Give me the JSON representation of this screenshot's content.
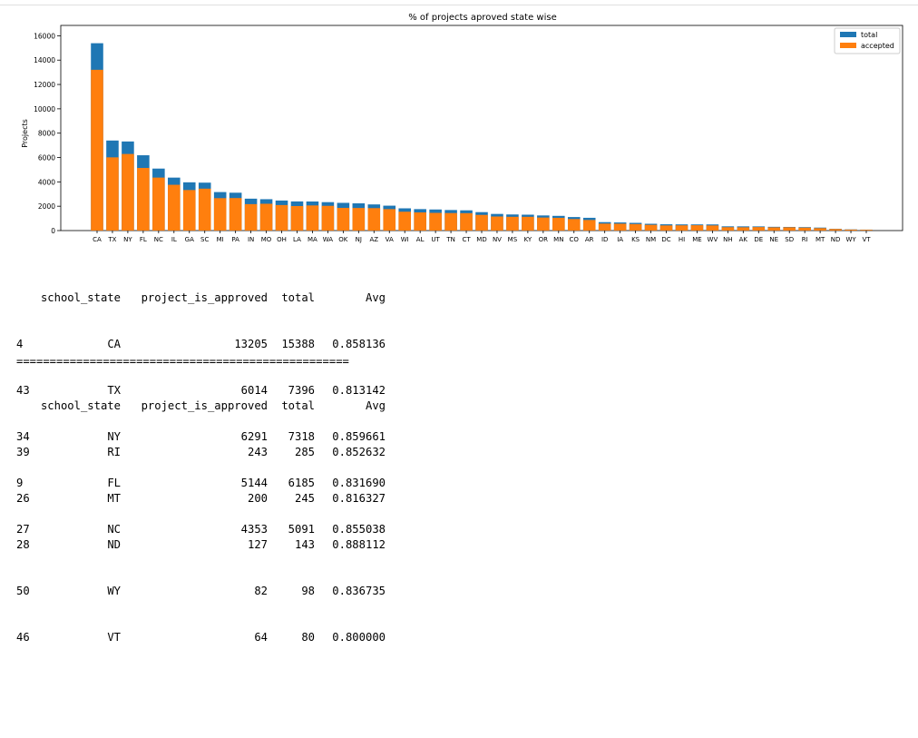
{
  "chart_data": {
    "type": "bar",
    "title": "% of projects aproved state wise",
    "ylabel": "Projects",
    "xlabel": "",
    "ylim": [
      0,
      16000
    ],
    "yticks": [
      0,
      2000,
      4000,
      6000,
      8000,
      10000,
      12000,
      14000,
      16000
    ],
    "grid": false,
    "legend_placement": "top-right",
    "stacked_overlay": true,
    "categories": [
      "CA",
      "TX",
      "NY",
      "FL",
      "NC",
      "IL",
      "GA",
      "SC",
      "MI",
      "PA",
      "IN",
      "MO",
      "OH",
      "LA",
      "MA",
      "WA",
      "OK",
      "NJ",
      "AZ",
      "VA",
      "WI",
      "AL",
      "UT",
      "TN",
      "CT",
      "MD",
      "NV",
      "MS",
      "KY",
      "OR",
      "MN",
      "CO",
      "AR",
      "ID",
      "IA",
      "KS",
      "NM",
      "DC",
      "HI",
      "ME",
      "WV",
      "NH",
      "AK",
      "DE",
      "NE",
      "SD",
      "RI",
      "MT",
      "ND",
      "WY",
      "VT"
    ],
    "series": [
      {
        "name": "total",
        "color": "#1f77b4",
        "values": [
          15388,
          7396,
          7318,
          6185,
          5091,
          4350,
          3963,
          3936,
          3161,
          3109,
          2620,
          2576,
          2467,
          2394,
          2389,
          2334,
          2276,
          2237,
          2147,
          2045,
          1827,
          1762,
          1731,
          1688,
          1663,
          1514,
          1367,
          1323,
          1304,
          1242,
          1208,
          1111,
          1049,
          693,
          666,
          634,
          557,
          516,
          507,
          505,
          503,
          348,
          345,
          343,
          309,
          300,
          285,
          245,
          143,
          98,
          80
        ]
      },
      {
        "name": "accepted",
        "color": "#ff7f0e",
        "values": [
          13205,
          6014,
          6291,
          5144,
          4353,
          3761,
          3329,
          3442,
          2662,
          2670,
          2171,
          2201,
          2095,
          2014,
          2064,
          2031,
          1862,
          1854,
          1843,
          1762,
          1548,
          1492,
          1453,
          1438,
          1428,
          1285,
          1155,
          1131,
          1130,
          1070,
          1046,
          947,
          868,
          573,
          566,
          535,
          472,
          422,
          430,
          439,
          421,
          277,
          271,
          286,
          265,
          270,
          243,
          200,
          127,
          82,
          64
        ]
      }
    ]
  },
  "table_top": {
    "headers": {
      "state": "school_state",
      "approved": "project_is_approved",
      "total": "total",
      "avg": "Avg"
    },
    "rows": [
      {
        "idx": "4",
        "state": "CA",
        "approved": "13205",
        "total": "15388",
        "avg": "0.858136"
      },
      {
        "idx": "43",
        "state": "TX",
        "approved": "6014",
        "total": "7396",
        "avg": "0.813142"
      },
      {
        "idx": "34",
        "state": "NY",
        "approved": "6291",
        "total": "7318",
        "avg": "0.859661"
      },
      {
        "idx": "9",
        "state": "FL",
        "approved": "5144",
        "total": "6185",
        "avg": "0.831690"
      },
      {
        "idx": "27",
        "state": "NC",
        "approved": "4353",
        "total": "5091",
        "avg": "0.855038"
      }
    ]
  },
  "separator": "==================================================",
  "table_bottom": {
    "headers": {
      "state": "school_state",
      "approved": "project_is_approved",
      "total": "total",
      "avg": "Avg"
    },
    "rows": [
      {
        "idx": "39",
        "state": "RI",
        "approved": "243",
        "total": "285",
        "avg": "0.852632"
      },
      {
        "idx": "26",
        "state": "MT",
        "approved": "200",
        "total": "245",
        "avg": "0.816327"
      },
      {
        "idx": "28",
        "state": "ND",
        "approved": "127",
        "total": "143",
        "avg": "0.888112"
      },
      {
        "idx": "50",
        "state": "WY",
        "approved": "82",
        "total": "98",
        "avg": "0.836735"
      },
      {
        "idx": "46",
        "state": "VT",
        "approved": "64",
        "total": "80",
        "avg": "0.800000"
      }
    ]
  }
}
